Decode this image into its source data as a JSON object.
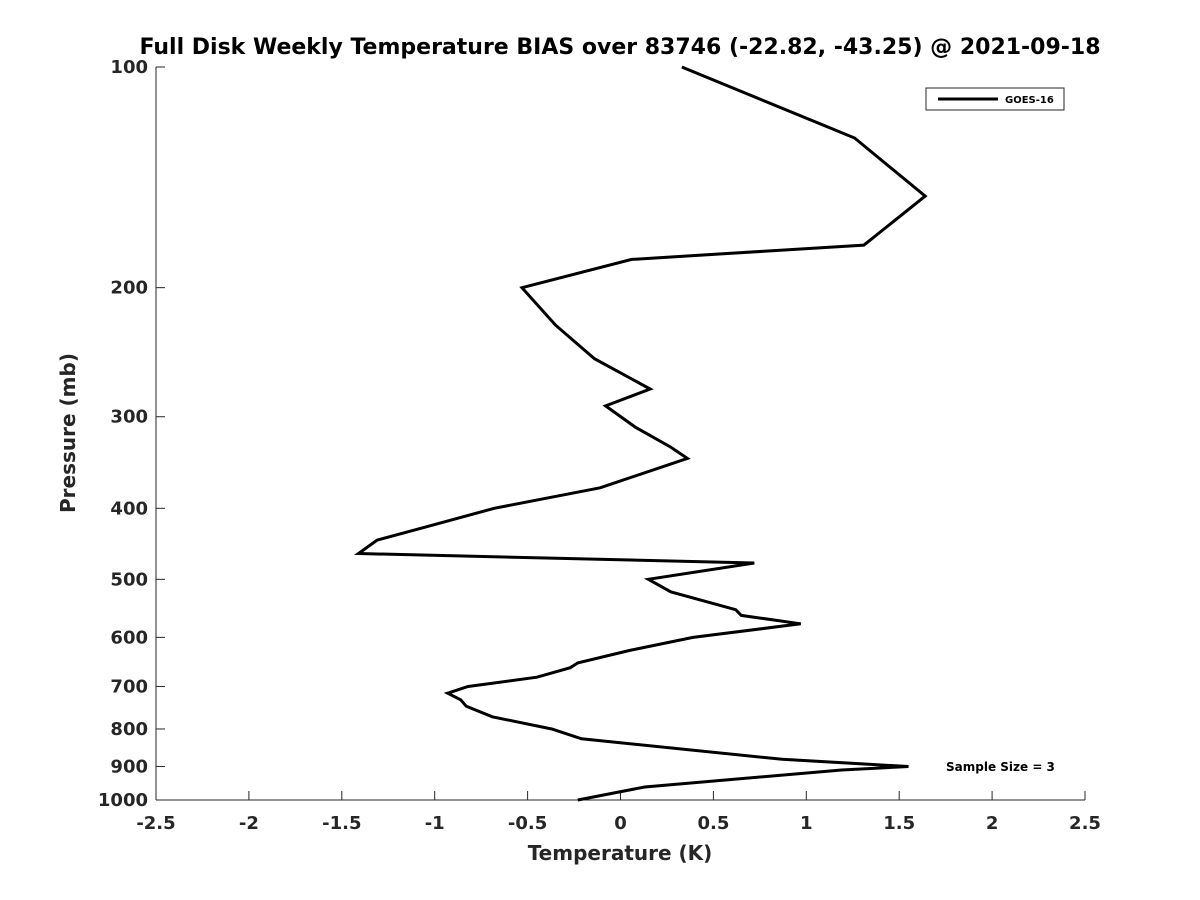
{
  "chart_data": {
    "type": "line",
    "title": "Full Disk Weekly Temperature BIAS over 83746 (-22.82, -43.25) @ 2021-09-18",
    "xlabel": "Temperature (K)",
    "ylabel": "Pressure (mb)",
    "xlim": [
      -2.5,
      2.5
    ],
    "ylim": [
      1000,
      100
    ],
    "y_scale": "log",
    "y_reversed": true,
    "xticks": [
      "-2.5",
      "-2",
      "-1.5",
      "-1",
      "-0.5",
      "0",
      "0.5",
      "1",
      "1.5",
      "2",
      "2.5"
    ],
    "xtick_values": [
      -2.5,
      -2,
      -1.5,
      -1,
      -0.5,
      0,
      0.5,
      1,
      1.5,
      2,
      2.5
    ],
    "yticks": [
      "100",
      "200",
      "300",
      "400",
      "500",
      "600",
      "700",
      "800",
      "900",
      "1000"
    ],
    "ytick_values": [
      100,
      200,
      300,
      400,
      500,
      600,
      700,
      800,
      900,
      1000
    ],
    "grid": false,
    "legend_position": "top-right",
    "annotation": "Sample Size = 3",
    "series": [
      {
        "name": "GOES-16",
        "color": "#000000",
        "points": [
          {
            "x": 0.33,
            "y": 100
          },
          {
            "x": 1.26,
            "y": 125
          },
          {
            "x": 1.64,
            "y": 150
          },
          {
            "x": 1.31,
            "y": 175
          },
          {
            "x": 0.06,
            "y": 183
          },
          {
            "x": -0.53,
            "y": 200
          },
          {
            "x": -0.35,
            "y": 225
          },
          {
            "x": -0.14,
            "y": 250
          },
          {
            "x": 0.16,
            "y": 275
          },
          {
            "x": -0.08,
            "y": 290
          },
          {
            "x": 0.08,
            "y": 310
          },
          {
            "x": 0.27,
            "y": 330
          },
          {
            "x": 0.36,
            "y": 342
          },
          {
            "x": -0.11,
            "y": 375
          },
          {
            "x": -0.68,
            "y": 400
          },
          {
            "x": -1.06,
            "y": 425
          },
          {
            "x": -1.31,
            "y": 442
          },
          {
            "x": -1.41,
            "y": 461
          },
          {
            "x": 0.72,
            "y": 475
          },
          {
            "x": 0.15,
            "y": 500
          },
          {
            "x": 0.27,
            "y": 520
          },
          {
            "x": 0.62,
            "y": 550
          },
          {
            "x": 0.65,
            "y": 560
          },
          {
            "x": 0.97,
            "y": 575
          },
          {
            "x": 0.39,
            "y": 600
          },
          {
            "x": 0.05,
            "y": 625
          },
          {
            "x": -0.23,
            "y": 650
          },
          {
            "x": -0.27,
            "y": 660
          },
          {
            "x": -0.45,
            "y": 680
          },
          {
            "x": -0.82,
            "y": 700
          },
          {
            "x": -0.93,
            "y": 715
          },
          {
            "x": -0.86,
            "y": 730
          },
          {
            "x": -0.83,
            "y": 745
          },
          {
            "x": -0.69,
            "y": 770
          },
          {
            "x": -0.37,
            "y": 800
          },
          {
            "x": -0.21,
            "y": 825
          },
          {
            "x": 0.87,
            "y": 880
          },
          {
            "x": 1.55,
            "y": 900
          },
          {
            "x": 1.19,
            "y": 910
          },
          {
            "x": 0.13,
            "y": 960
          },
          {
            "x": -0.23,
            "y": 1000
          }
        ]
      }
    ]
  }
}
